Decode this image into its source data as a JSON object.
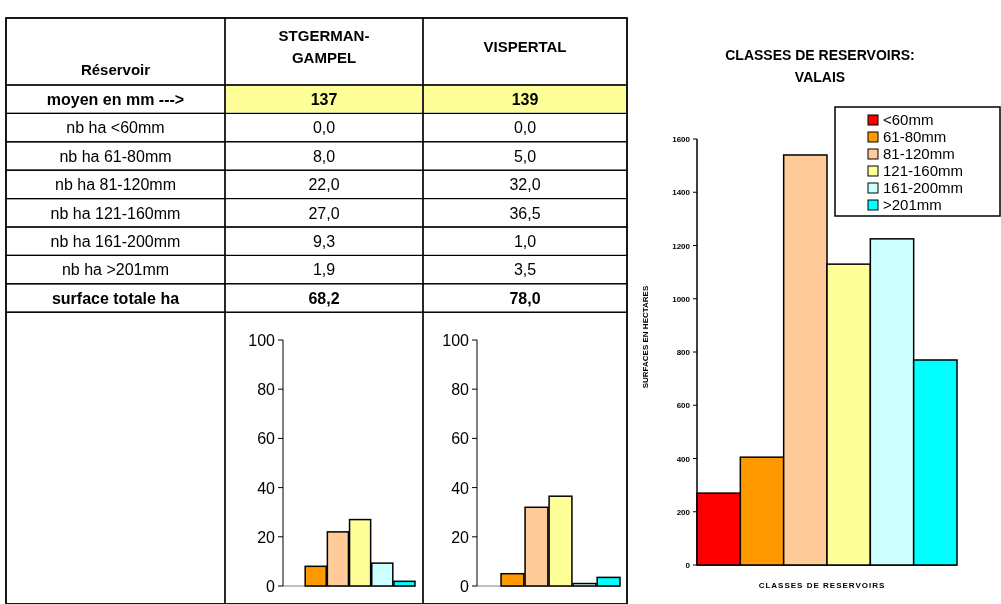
{
  "chart_data": [
    {
      "type": "heatmap",
      "title": "Réservoir",
      "categories": [
        "STGERMAN-GAMPEL",
        "VISPERTAL"
      ],
      "y_categories": [
        "moyen en mm --->",
        "nb ha <60mm",
        "nb ha 61-80mm",
        "nb ha 81-120mm",
        "nb ha 121-160mm",
        "nb ha 161-200mm",
        "nb ha >201mm",
        "surface totale ha"
      ],
      "cells": [
        [
          137,
          139
        ],
        [
          0,
          0
        ],
        [
          8,
          5
        ],
        [
          22,
          32
        ],
        [
          27,
          36.5
        ],
        [
          9.3,
          1
        ],
        [
          1.9,
          3.5
        ],
        [
          68.2,
          78
        ]
      ],
      "cell_labels": [
        [
          "137",
          "139"
        ],
        [
          "0,0",
          "0,0"
        ],
        [
          "8,0",
          "5,0"
        ],
        [
          "22,0",
          "32,0"
        ],
        [
          "27,0",
          "36,5"
        ],
        [
          "9,3",
          "1,0"
        ],
        [
          "1,9",
          "3,5"
        ],
        [
          "68,2",
          "78,0"
        ]
      ]
    },
    {
      "type": "bar",
      "categories": [
        null,
        null,
        null,
        null,
        null,
        null
      ],
      "values": [
        0,
        8,
        22,
        27,
        9.3,
        1.9
      ],
      "colors": [
        "#ff0000",
        "#ff9900",
        "#ffcc99",
        "#ffff99",
        "#ccffff",
        "#00ffff"
      ],
      "ylim": [
        0,
        100
      ],
      "yticks": [
        0,
        20,
        40,
        60,
        80,
        100
      ]
    },
    {
      "type": "bar",
      "categories": [
        null,
        null,
        null,
        null,
        null,
        null
      ],
      "values": [
        0,
        5,
        32,
        36.5,
        1,
        3.5
      ],
      "colors": [
        "#ff0000",
        "#ff9900",
        "#ffcc99",
        "#ffff99",
        "#ccffff",
        "#00ffff"
      ],
      "ylim": [
        0,
        100
      ],
      "yticks": [
        0,
        20,
        40,
        60,
        80,
        100
      ]
    },
    {
      "type": "bar",
      "title": "CLASSES DE RESERVOIRS: VALAIS",
      "xlabel": "CLASSES DE RESERVOIRS",
      "ylabel": "SURFACES EN HECTARES",
      "categories": [
        null
      ],
      "series": [
        {
          "name": "<60mm",
          "color": "#ff0000",
          "values": [
            270
          ]
        },
        {
          "name": "61-80mm",
          "color": "#ff9900",
          "values": [
            405
          ]
        },
        {
          "name": "81-120mm",
          "color": "#ffcc99",
          "values": [
            1540
          ]
        },
        {
          "name": "121-160mm",
          "color": "#ffff99",
          "values": [
            1130
          ]
        },
        {
          "name": "161-200mm",
          "color": "#ccffff",
          "values": [
            1225
          ]
        },
        {
          "name": ">201mm",
          "color": "#00ffff",
          "values": [
            770
          ]
        }
      ],
      "ylim": [
        0,
        1600
      ],
      "yticks": [
        0,
        200,
        400,
        600,
        800,
        1000,
        1200,
        1400,
        1600
      ],
      "legend": "top right"
    }
  ]
}
